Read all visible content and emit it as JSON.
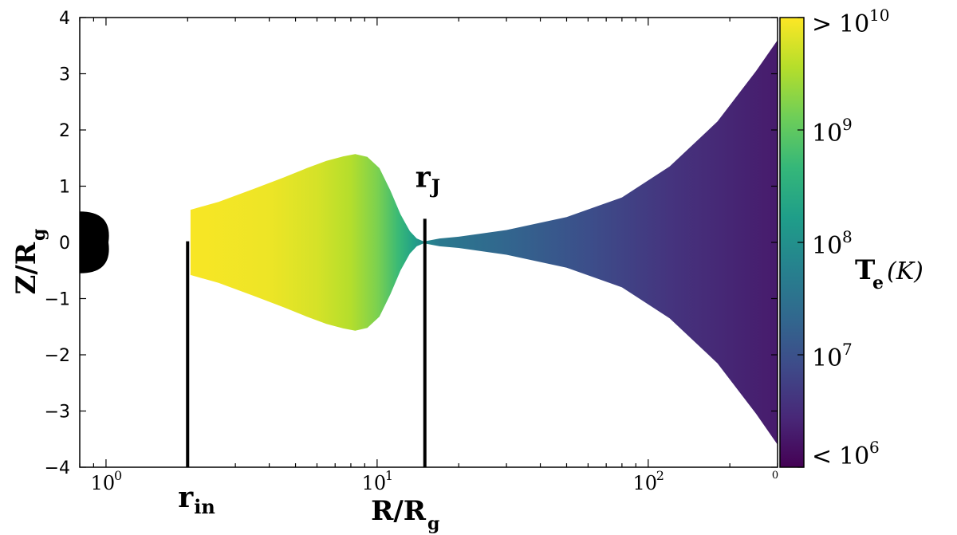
{
  "chart_data": {
    "type": "area",
    "xscale": "log",
    "xlim": [
      0.8,
      300
    ],
    "ylim": [
      -4,
      4
    ],
    "xlabel": "R/R",
    "xlabel_sub": "g",
    "ylabel": "Z/R",
    "ylabel_sub": "g",
    "xticks": [
      {
        "value": 1,
        "base": "10",
        "exp": "0"
      },
      {
        "value": 10,
        "base": "10",
        "exp": "1"
      },
      {
        "value": 100,
        "base": "10",
        "exp": "2"
      }
    ],
    "corner_tick_label": "0",
    "yticks": [
      {
        "value": 4,
        "label": "4"
      },
      {
        "value": 3,
        "label": "3"
      },
      {
        "value": 2,
        "label": "2"
      },
      {
        "value": 1,
        "label": "1"
      },
      {
        "value": 0,
        "label": "0"
      },
      {
        "value": -1,
        "label": "−1"
      },
      {
        "value": -2,
        "label": "−2"
      },
      {
        "value": -3,
        "label": "−3"
      },
      {
        "value": -4,
        "label": "−4"
      }
    ],
    "black_hole": {
      "height": 0.55
    },
    "markers": [
      {
        "x": 2.0,
        "y_top": 0.02,
        "label": "r",
        "sub": "in",
        "label_position": "below"
      },
      {
        "x": 15.0,
        "y_top": 0.42,
        "label": "r",
        "sub": "J",
        "label_position": "above"
      }
    ],
    "inner_region": {
      "r": [
        2.05,
        2.6,
        3.5,
        4.5,
        5.5,
        6.5,
        7.5,
        8.3,
        9.2,
        10.2,
        11.2,
        12.2,
        13.2,
        14.0,
        14.8
      ],
      "h": [
        0.58,
        0.72,
        0.95,
        1.15,
        1.32,
        1.45,
        1.53,
        1.57,
        1.52,
        1.32,
        0.92,
        0.5,
        0.2,
        0.07,
        0.02
      ]
    },
    "outer_region": {
      "r": [
        15.0,
        17,
        20,
        30,
        50,
        80,
        120,
        180,
        250,
        300
      ],
      "h": [
        0.02,
        0.07,
        0.1,
        0.22,
        0.45,
        0.8,
        1.35,
        2.15,
        3.05,
        3.6
      ]
    },
    "colorbar": {
      "label": "T",
      "label_sub": "e",
      "unit": "(K)",
      "scale": "log",
      "range": [
        1000000,
        10000000000
      ],
      "colors": [
        "#440154",
        "#482878",
        "#3e4a89",
        "#31688e",
        "#26828e",
        "#1f9e89",
        "#35b779",
        "#6ece58",
        "#b5de2b",
        "#fde725"
      ],
      "ticks": [
        {
          "value": 10000000000,
          "prefix": ">",
          "base": "10",
          "exp": "10"
        },
        {
          "value": 1000000000,
          "prefix": "",
          "base": "10",
          "exp": "9"
        },
        {
          "value": 100000000,
          "prefix": "",
          "base": "10",
          "exp": "8"
        },
        {
          "value": 10000000,
          "prefix": "",
          "base": "10",
          "exp": "7"
        },
        {
          "value": 1000000,
          "prefix": "<",
          "base": "10",
          "exp": "6"
        }
      ]
    },
    "temperature_profile": {
      "r": [
        2.05,
        4,
        6,
        8,
        10,
        12,
        13.5,
        15,
        17,
        30,
        60,
        120,
        300
      ],
      "log_te": [
        9.97,
        9.9,
        9.75,
        9.55,
        9.2,
        8.7,
        8.3,
        7.9,
        7.62,
        7.3,
        6.95,
        6.6,
        6.3
      ]
    }
  }
}
